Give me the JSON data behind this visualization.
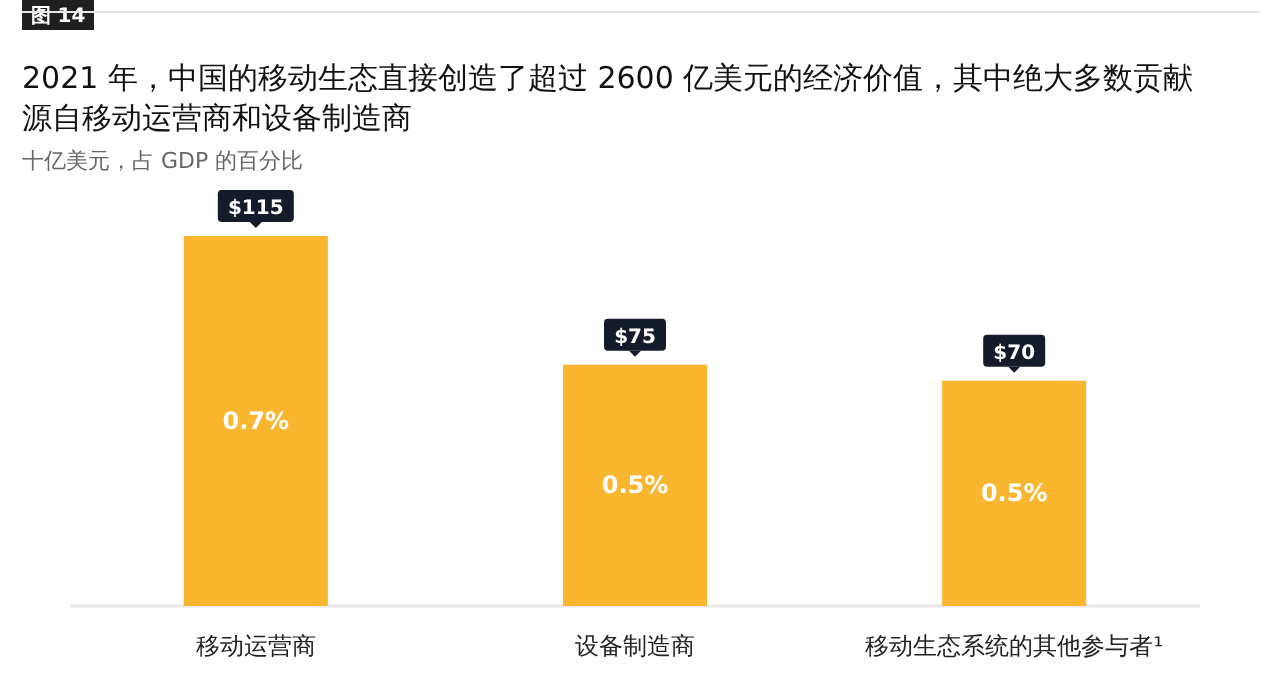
{
  "chart_data": {
    "type": "bar",
    "title": "2021 年，中国的移动生态直接创造了超过 2600 亿美元的经济价值，其中绝大多数贡献源自移动运营商和设备制造商",
    "subtitle": "十亿美元，占 GDP 的百分比",
    "categories": [
      "移动运营商",
      "设备制造商",
      "移动生态系统的其他参与者¹"
    ],
    "values": [
      115,
      75,
      70
    ],
    "color": "#fbb62f",
    "value_labels": [
      "$115",
      "$75",
      "$70"
    ],
    "annotations": [
      "图 14",
      "0.7%",
      "0.5%",
      "0.5%"
    ]
  }
}
